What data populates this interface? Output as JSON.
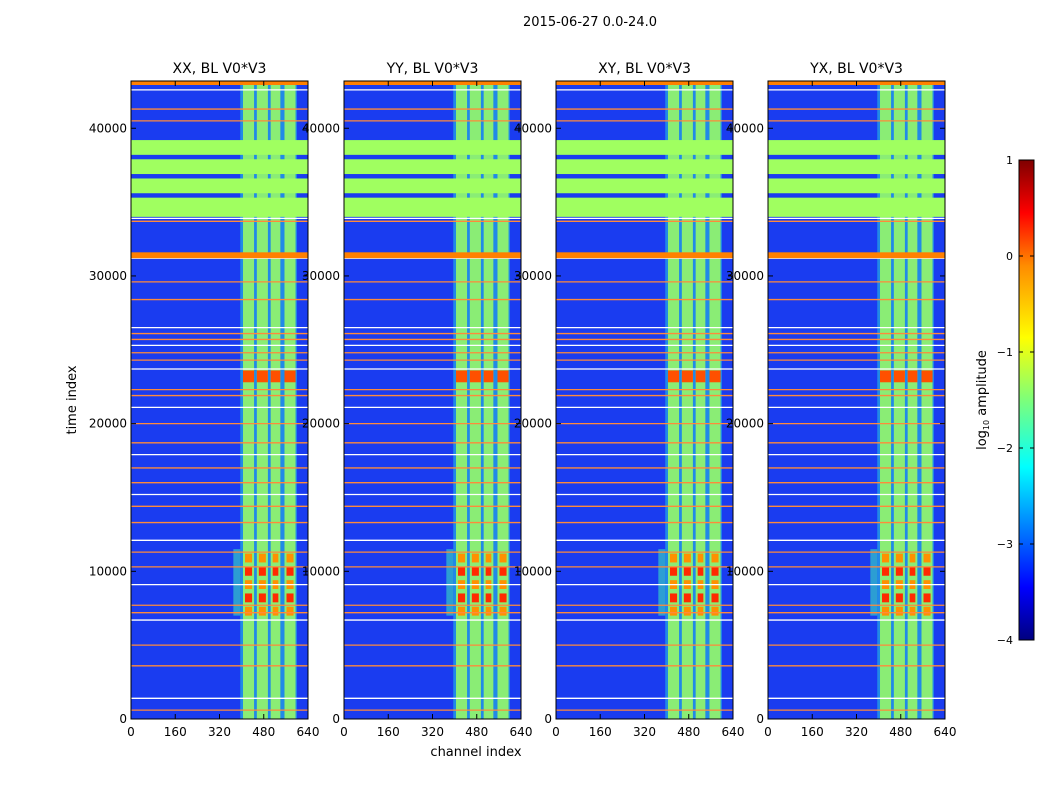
{
  "figure": {
    "title": "2015-06-27 0.0-24.0"
  },
  "chart_data": {
    "type": "heatmap",
    "colormap": "jet",
    "shared_ylabel": "time index",
    "shared_xlabel": "channel index",
    "xlim": [
      0,
      640
    ],
    "ylim": [
      0,
      43200
    ],
    "xticks": [
      0,
      160,
      320,
      480,
      640
    ],
    "yticks": [
      0,
      10000,
      20000,
      30000,
      40000
    ],
    "panels": [
      {
        "title": "XX, BL V0*V3"
      },
      {
        "title": "YY, BL V0*V3"
      },
      {
        "title": "XY, BL V0*V3"
      },
      {
        "title": "YX, BL V0*V3"
      }
    ],
    "colorbar": {
      "label": "log",
      "label_sub": "10",
      "label_rest": " amplitude",
      "range": [
        -4,
        1
      ],
      "ticks": [
        "1",
        "0",
        "−1",
        "−2",
        "−3",
        "−4"
      ],
      "tick_values": [
        1,
        0,
        -1,
        -2,
        -3,
        -4
      ]
    },
    "features": {
      "band_channel_columns": [
        [
          405,
          445
        ],
        [
          455,
          495
        ],
        [
          505,
          540
        ],
        [
          555,
          595
        ]
      ],
      "saturated_time_bands": [
        [
          34000,
          35300
        ],
        [
          35600,
          36600
        ],
        [
          36900,
          37900
        ],
        [
          38200,
          39200
        ]
      ],
      "flag_rows": [
        600,
        1400,
        3600,
        5000,
        6700,
        7200,
        7700,
        9100,
        10300,
        11300,
        12100,
        13300,
        14400,
        15200,
        16000,
        17000,
        17900,
        18700,
        20000,
        21100,
        21900,
        22300,
        23700,
        24300,
        24800,
        25300,
        25700,
        26100,
        26500,
        28400,
        29600,
        31200,
        31500,
        33700,
        33900,
        40500,
        41300,
        42600,
        43100
      ],
      "hot_time_range": [
        7000,
        11500
      ]
    }
  }
}
